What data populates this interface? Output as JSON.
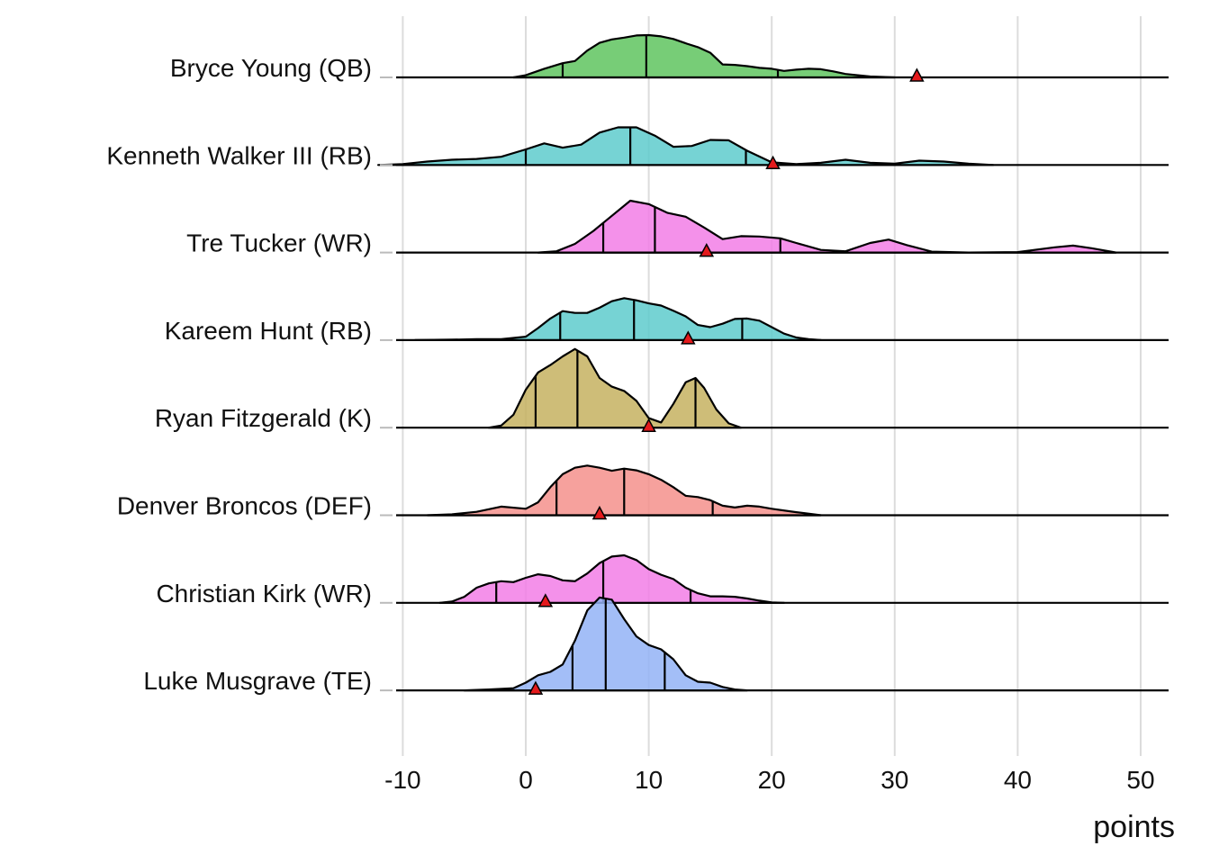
{
  "chart_data": {
    "type": "ridgeline",
    "title": "",
    "xlabel": "points",
    "ylabel": "",
    "xlim": [
      -11,
      52.5
    ],
    "x_ticks": [
      -10,
      0,
      10,
      20,
      30,
      40,
      50
    ],
    "x_tick_labels": [
      "-10",
      "0",
      "10",
      "20",
      "30",
      "40",
      "50"
    ],
    "grid": "vertical",
    "series": [
      {
        "name": "Bryce Young (QB)",
        "color": "#5fc45f",
        "quantiles": [
          3,
          9.8,
          20.5
        ],
        "marker": 31.8,
        "density": [
          [
            -1,
            0
          ],
          [
            0,
            0.05
          ],
          [
            1.5,
            0.2
          ],
          [
            3,
            0.33
          ],
          [
            4,
            0.38
          ],
          [
            5,
            0.62
          ],
          [
            6,
            0.8
          ],
          [
            7,
            0.88
          ],
          [
            8,
            0.92
          ],
          [
            9,
            0.97
          ],
          [
            10,
            0.98
          ],
          [
            11,
            0.95
          ],
          [
            12,
            0.89
          ],
          [
            13,
            0.79
          ],
          [
            14,
            0.7
          ],
          [
            15,
            0.57
          ],
          [
            16,
            0.3
          ],
          [
            17,
            0.29
          ],
          [
            18,
            0.26
          ],
          [
            19,
            0.22
          ],
          [
            20,
            0.2
          ],
          [
            21,
            0.15
          ],
          [
            22,
            0.18
          ],
          [
            23,
            0.2
          ],
          [
            24,
            0.19
          ],
          [
            25,
            0.14
          ],
          [
            26,
            0.08
          ],
          [
            27,
            0.05
          ],
          [
            28,
            0.02
          ],
          [
            29,
            0.01
          ],
          [
            30,
            0
          ]
        ]
      },
      {
        "name": "Kenneth Walker III (RB)",
        "color": "#5ecbcc",
        "quantiles": [
          0,
          8.5,
          17.9
        ],
        "marker": 20.1,
        "density": [
          [
            -12,
            0
          ],
          [
            -10,
            0.02
          ],
          [
            -8,
            0.08
          ],
          [
            -6,
            0.12
          ],
          [
            -4,
            0.14
          ],
          [
            -2,
            0.19
          ],
          [
            0,
            0.36
          ],
          [
            1.5,
            0.5
          ],
          [
            3,
            0.4
          ],
          [
            4.5,
            0.47
          ],
          [
            6,
            0.75
          ],
          [
            7.5,
            0.87
          ],
          [
            9,
            0.87
          ],
          [
            10.5,
            0.68
          ],
          [
            12,
            0.42
          ],
          [
            13.5,
            0.44
          ],
          [
            15,
            0.58
          ],
          [
            16.5,
            0.57
          ],
          [
            18,
            0.33
          ],
          [
            20,
            0.06
          ],
          [
            22,
            0.02
          ],
          [
            24,
            0.05
          ],
          [
            26,
            0.12
          ],
          [
            28,
            0.05
          ],
          [
            30,
            0.03
          ],
          [
            32,
            0.1
          ],
          [
            34,
            0.08
          ],
          [
            36,
            0.03
          ],
          [
            38,
            0
          ]
        ]
      },
      {
        "name": "Tre Tucker (WR)",
        "color": "#f27ee6",
        "quantiles": [
          6.3,
          10.5,
          20.7
        ],
        "marker": 14.7,
        "density": [
          [
            1,
            0
          ],
          [
            2.5,
            0.03
          ],
          [
            4,
            0.2
          ],
          [
            5.5,
            0.5
          ],
          [
            7,
            0.85
          ],
          [
            8.5,
            1.2
          ],
          [
            10,
            1.12
          ],
          [
            11.5,
            0.92
          ],
          [
            13,
            0.83
          ],
          [
            14.5,
            0.58
          ],
          [
            16,
            0.31
          ],
          [
            17.5,
            0.38
          ],
          [
            19,
            0.37
          ],
          [
            20.7,
            0.33
          ],
          [
            22,
            0.22
          ],
          [
            24,
            0.06
          ],
          [
            26,
            0.03
          ],
          [
            28,
            0.22
          ],
          [
            29.5,
            0.3
          ],
          [
            31,
            0.17
          ],
          [
            33,
            0.02
          ],
          [
            36,
            0
          ],
          [
            40,
            0.01
          ],
          [
            43,
            0.12
          ],
          [
            44.5,
            0.16
          ],
          [
            46,
            0.1
          ],
          [
            48,
            0
          ]
        ]
      },
      {
        "name": "Kareem Hunt (RB)",
        "color": "#5ecbcc",
        "quantiles": [
          2.8,
          8.8,
          17.6
        ],
        "marker": 13.2,
        "density": [
          [
            -9,
            0
          ],
          [
            -6,
            0.01
          ],
          [
            -4,
            0.02
          ],
          [
            -2,
            0.02
          ],
          [
            0,
            0.08
          ],
          [
            1,
            0.28
          ],
          [
            2,
            0.5
          ],
          [
            3,
            0.67
          ],
          [
            4,
            0.63
          ],
          [
            5,
            0.63
          ],
          [
            6,
            0.75
          ],
          [
            7,
            0.9
          ],
          [
            8,
            0.97
          ],
          [
            9,
            0.92
          ],
          [
            10,
            0.85
          ],
          [
            11,
            0.8
          ],
          [
            12,
            0.68
          ],
          [
            13,
            0.55
          ],
          [
            14,
            0.35
          ],
          [
            15,
            0.3
          ],
          [
            16,
            0.38
          ],
          [
            17,
            0.49
          ],
          [
            18,
            0.5
          ],
          [
            19,
            0.45
          ],
          [
            20,
            0.3
          ],
          [
            21,
            0.15
          ],
          [
            22,
            0.06
          ],
          [
            23,
            0.02
          ],
          [
            24,
            0
          ]
        ]
      },
      {
        "name": "Ryan Fitzgerald (K)",
        "color": "#c6b260",
        "quantiles": [
          0.8,
          4.2,
          13.8
        ],
        "marker": 10.0,
        "density": [
          [
            -3,
            0
          ],
          [
            -2,
            0.05
          ],
          [
            -1,
            0.3
          ],
          [
            0,
            0.88
          ],
          [
            1,
            1.28
          ],
          [
            2,
            1.45
          ],
          [
            3,
            1.65
          ],
          [
            4,
            1.82
          ],
          [
            5,
            1.65
          ],
          [
            6,
            1.15
          ],
          [
            7,
            0.95
          ],
          [
            8,
            0.85
          ],
          [
            9,
            0.62
          ],
          [
            10,
            0.22
          ],
          [
            11,
            0.12
          ],
          [
            12,
            0.55
          ],
          [
            13,
            1.05
          ],
          [
            13.8,
            1.15
          ],
          [
            14.5,
            0.92
          ],
          [
            15.5,
            0.42
          ],
          [
            16.5,
            0.1
          ],
          [
            17.5,
            0
          ]
        ]
      },
      {
        "name": "Denver Broncos (DEF)",
        "color": "#f4918c",
        "quantiles": [
          2.5,
          8.0,
          15.2
        ],
        "marker": 6.0,
        "density": [
          [
            -8,
            0
          ],
          [
            -6,
            0.02
          ],
          [
            -4,
            0.08
          ],
          [
            -2,
            0.2
          ],
          [
            0,
            0.15
          ],
          [
            1,
            0.3
          ],
          [
            2,
            0.65
          ],
          [
            3,
            0.95
          ],
          [
            4,
            1.1
          ],
          [
            5,
            1.15
          ],
          [
            6,
            1.1
          ],
          [
            7,
            1.03
          ],
          [
            8,
            1.08
          ],
          [
            9,
            1.04
          ],
          [
            10,
            0.95
          ],
          [
            11,
            0.82
          ],
          [
            12,
            0.65
          ],
          [
            13,
            0.45
          ],
          [
            14,
            0.42
          ],
          [
            15,
            0.35
          ],
          [
            16,
            0.22
          ],
          [
            17,
            0.18
          ],
          [
            18,
            0.22
          ],
          [
            19,
            0.2
          ],
          [
            20,
            0.15
          ],
          [
            22,
            0.07
          ],
          [
            24,
            0
          ]
        ]
      },
      {
        "name": "Christian Kirk (WR)",
        "color": "#f27ee6",
        "quantiles": [
          -2.4,
          6.3,
          13.4
        ],
        "marker": 1.6,
        "density": [
          [
            -7,
            0
          ],
          [
            -6,
            0.03
          ],
          [
            -5,
            0.14
          ],
          [
            -4,
            0.35
          ],
          [
            -3,
            0.45
          ],
          [
            -2,
            0.5
          ],
          [
            -1,
            0.48
          ],
          [
            0,
            0.58
          ],
          [
            1,
            0.66
          ],
          [
            2,
            0.62
          ],
          [
            3,
            0.52
          ],
          [
            4,
            0.5
          ],
          [
            5,
            0.68
          ],
          [
            6,
            0.92
          ],
          [
            7,
            1.07
          ],
          [
            8,
            1.1
          ],
          [
            9,
            0.99
          ],
          [
            10,
            0.78
          ],
          [
            11,
            0.65
          ],
          [
            12,
            0.55
          ],
          [
            13,
            0.35
          ],
          [
            14,
            0.22
          ],
          [
            15,
            0.15
          ],
          [
            16,
            0.15
          ],
          [
            17,
            0.14
          ],
          [
            18,
            0.1
          ],
          [
            19,
            0.05
          ],
          [
            20,
            0.01
          ],
          [
            21,
            0
          ]
        ]
      },
      {
        "name": "Luke Musgrave (TE)",
        "color": "#93b3f6",
        "quantiles": [
          3.8,
          6.5,
          11.3
        ],
        "marker": 0.8,
        "density": [
          [
            -5,
            0
          ],
          [
            -3,
            0.02
          ],
          [
            -1,
            0.05
          ],
          [
            0,
            0.18
          ],
          [
            1,
            0.35
          ],
          [
            2,
            0.43
          ],
          [
            3,
            0.6
          ],
          [
            4,
            1.15
          ],
          [
            5,
            1.85
          ],
          [
            6,
            2.15
          ],
          [
            7,
            2.1
          ],
          [
            8,
            1.65
          ],
          [
            9,
            1.25
          ],
          [
            10,
            1.05
          ],
          [
            11,
            0.95
          ],
          [
            12,
            0.72
          ],
          [
            13,
            0.35
          ],
          [
            14,
            0.2
          ],
          [
            15,
            0.18
          ],
          [
            16,
            0.08
          ],
          [
            17,
            0.02
          ],
          [
            18,
            0
          ]
        ]
      }
    ]
  },
  "marker_color": "#e41a1c"
}
